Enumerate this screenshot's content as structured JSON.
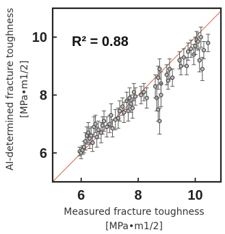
{
  "chart_data": {
    "type": "scatter",
    "xlabel_line1": "Measured fracture toughness",
    "xlabel_line2": "[MPa•m1/2]",
    "ylabel_line1": "AI-determined fracture toughness",
    "ylabel_line2": "[MPa•m1/2]",
    "annotation": "R² = 0.88",
    "xlim": [
      5,
      10.9
    ],
    "ylim": [
      5,
      11
    ],
    "x_ticks": [
      6,
      8,
      10
    ],
    "y_ticks": [
      6,
      8,
      10
    ],
    "x_tick_labels": [
      "6",
      "8",
      "10"
    ],
    "y_tick_labels": [
      "6",
      "8",
      "10"
    ],
    "trend_line": [
      [
        5,
        5
      ],
      [
        10.9,
        10.9
      ]
    ],
    "colors": {
      "trend": "#d9826f",
      "points": "#555555",
      "axes": "#222222"
    },
    "grid": false,
    "points": [
      {
        "x": 5.95,
        "y": 6.05,
        "e": 0.15
      },
      {
        "x": 6.0,
        "y": 6.0,
        "e": 0.2
      },
      {
        "x": 6.05,
        "y": 6.1,
        "e": 0.15
      },
      {
        "x": 6.1,
        "y": 6.2,
        "e": 0.2
      },
      {
        "x": 6.15,
        "y": 6.4,
        "e": 0.3
      },
      {
        "x": 6.2,
        "y": 6.6,
        "e": 0.3
      },
      {
        "x": 6.25,
        "y": 6.7,
        "e": 0.35
      },
      {
        "x": 6.3,
        "y": 6.5,
        "e": 0.35
      },
      {
        "x": 6.35,
        "y": 6.6,
        "e": 0.3
      },
      {
        "x": 6.4,
        "y": 6.35,
        "e": 0.3
      },
      {
        "x": 6.45,
        "y": 6.9,
        "e": 0.35
      },
      {
        "x": 6.5,
        "y": 7.0,
        "e": 0.3
      },
      {
        "x": 6.55,
        "y": 6.55,
        "e": 0.35
      },
      {
        "x": 6.6,
        "y": 6.8,
        "e": 0.3
      },
      {
        "x": 6.7,
        "y": 6.7,
        "e": 0.35
      },
      {
        "x": 6.75,
        "y": 6.95,
        "e": 0.3
      },
      {
        "x": 6.8,
        "y": 7.1,
        "e": 0.35
      },
      {
        "x": 6.9,
        "y": 6.9,
        "e": 0.35
      },
      {
        "x": 7.0,
        "y": 7.0,
        "e": 0.3
      },
      {
        "x": 7.05,
        "y": 7.3,
        "e": 0.4
      },
      {
        "x": 7.1,
        "y": 6.85,
        "e": 0.3
      },
      {
        "x": 7.2,
        "y": 7.15,
        "e": 0.35
      },
      {
        "x": 7.3,
        "y": 7.2,
        "e": 0.35
      },
      {
        "x": 7.35,
        "y": 7.45,
        "e": 0.35
      },
      {
        "x": 7.45,
        "y": 7.6,
        "e": 0.3
      },
      {
        "x": 7.5,
        "y": 7.4,
        "e": 0.35
      },
      {
        "x": 7.6,
        "y": 7.8,
        "e": 0.3
      },
      {
        "x": 7.65,
        "y": 7.45,
        "e": 0.35
      },
      {
        "x": 7.7,
        "y": 7.9,
        "e": 0.35
      },
      {
        "x": 7.75,
        "y": 7.7,
        "e": 0.3
      },
      {
        "x": 7.8,
        "y": 7.55,
        "e": 0.35
      },
      {
        "x": 7.85,
        "y": 8.1,
        "e": 0.3
      },
      {
        "x": 7.9,
        "y": 7.95,
        "e": 0.3
      },
      {
        "x": 8.1,
        "y": 8.0,
        "e": 0.3
      },
      {
        "x": 8.2,
        "y": 8.1,
        "e": 0.3
      },
      {
        "x": 8.3,
        "y": 7.9,
        "e": 0.35
      },
      {
        "x": 8.6,
        "y": 8.3,
        "e": 0.4
      },
      {
        "x": 8.65,
        "y": 7.9,
        "e": 0.45
      },
      {
        "x": 8.7,
        "y": 8.6,
        "e": 0.4
      },
      {
        "x": 8.7,
        "y": 7.5,
        "e": 0.4
      },
      {
        "x": 8.75,
        "y": 8.9,
        "e": 0.35
      },
      {
        "x": 8.75,
        "y": 7.1,
        "e": 0.45
      },
      {
        "x": 8.8,
        "y": 8.4,
        "e": 0.4
      },
      {
        "x": 8.8,
        "y": 8.0,
        "e": 0.4
      },
      {
        "x": 9.0,
        "y": 8.7,
        "e": 0.35
      },
      {
        "x": 9.05,
        "y": 8.5,
        "e": 0.3
      },
      {
        "x": 9.1,
        "y": 8.9,
        "e": 0.35
      },
      {
        "x": 9.2,
        "y": 8.6,
        "e": 0.3
      },
      {
        "x": 9.45,
        "y": 9.2,
        "e": 0.3
      },
      {
        "x": 9.5,
        "y": 9.0,
        "e": 0.3
      },
      {
        "x": 9.6,
        "y": 9.3,
        "e": 0.3
      },
      {
        "x": 9.7,
        "y": 9.0,
        "e": 0.3
      },
      {
        "x": 9.75,
        "y": 9.5,
        "e": 0.3
      },
      {
        "x": 9.85,
        "y": 9.6,
        "e": 0.3
      },
      {
        "x": 9.95,
        "y": 9.4,
        "e": 0.35
      },
      {
        "x": 10.0,
        "y": 9.7,
        "e": 0.3
      },
      {
        "x": 10.05,
        "y": 9.9,
        "e": 0.3
      },
      {
        "x": 10.1,
        "y": 9.85,
        "e": 0.3
      },
      {
        "x": 10.15,
        "y": 9.2,
        "e": 0.4
      },
      {
        "x": 10.2,
        "y": 10.0,
        "e": 0.35
      },
      {
        "x": 10.25,
        "y": 8.9,
        "e": 0.4
      },
      {
        "x": 10.3,
        "y": 9.55,
        "e": 0.3
      },
      {
        "x": 10.45,
        "y": 9.8,
        "e": 0.3
      }
    ]
  }
}
